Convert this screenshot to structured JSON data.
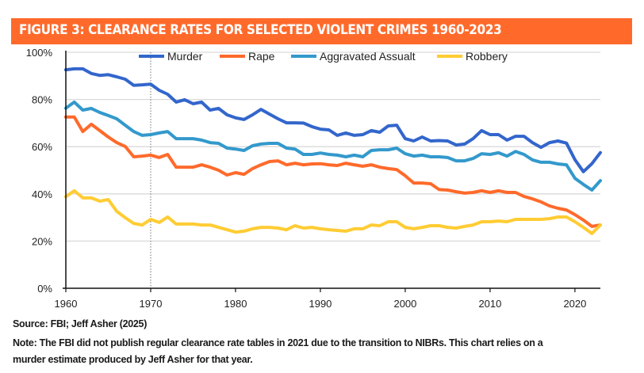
{
  "figure": {
    "title": "FIGURE 3: CLEARANCE RATES FOR SELECTED VIOLENT CRIMES 1960-2023",
    "banner_color": "#ff6a2b",
    "source": "Source: FBI; Jeff Asher (2025)",
    "note_line1": "Note: The FBI did not publish regular clearance rate tables in 2021 due to the transition to NIBRs. This chart relies on a",
    "note_line2": "murder estimate produced  by Jeff Asher for that year."
  },
  "chart_data": {
    "type": "line",
    "title": "FIGURE 3: CLEARANCE RATES FOR SELECTED VIOLENT CRIMES 1960-2023",
    "xlabel": "",
    "ylabel": "",
    "xlim": [
      1960,
      2023
    ],
    "ylim": [
      0,
      100
    ],
    "x_ticks": [
      1960,
      1970,
      1980,
      1990,
      2000,
      2010,
      2020
    ],
    "y_ticks": [
      0,
      20,
      40,
      60,
      80,
      100
    ],
    "y_tick_labels": [
      "0%",
      "20%",
      "40%",
      "60%",
      "80%",
      "100%"
    ],
    "grid": "horizontal",
    "legend_position": "top",
    "reference_line": {
      "x": 1970,
      "style": "dotted"
    },
    "x": [
      1960,
      1961,
      1962,
      1963,
      1964,
      1965,
      1966,
      1967,
      1968,
      1969,
      1970,
      1971,
      1972,
      1973,
      1974,
      1975,
      1976,
      1977,
      1978,
      1979,
      1980,
      1981,
      1982,
      1983,
      1984,
      1985,
      1986,
      1987,
      1988,
      1989,
      1990,
      1991,
      1992,
      1993,
      1994,
      1995,
      1996,
      1997,
      1998,
      1999,
      2000,
      2001,
      2002,
      2003,
      2004,
      2005,
      2006,
      2007,
      2008,
      2009,
      2010,
      2011,
      2012,
      2013,
      2014,
      2015,
      2016,
      2017,
      2018,
      2019,
      2020,
      2021,
      2022,
      2023
    ],
    "series": [
      {
        "name": "Murder",
        "color": "#3366cc",
        "values": [
          92.6,
          93.0,
          93.0,
          91.0,
          90.2,
          90.5,
          89.6,
          88.6,
          86.0,
          86.2,
          86.5,
          83.9,
          82.2,
          78.9,
          79.9,
          78.2,
          78.9,
          75.5,
          76.2,
          73.5,
          72.2,
          71.5,
          73.5,
          75.8,
          73.8,
          71.8,
          70.1,
          70.1,
          70.0,
          68.5,
          67.4,
          67.1,
          64.8,
          65.8,
          64.8,
          65.1,
          66.8,
          66.1,
          68.8,
          69.1,
          63.4,
          62.4,
          64.1,
          62.4,
          62.6,
          62.4,
          60.7,
          61.1,
          63.4,
          66.8,
          65.1,
          65.1,
          62.8,
          64.4,
          64.4,
          61.7,
          59.7,
          61.7,
          62.4,
          61.5,
          54.5,
          49.4,
          52.8,
          57.5
        ]
      },
      {
        "name": "Rape",
        "color": "#ff6a2b",
        "values": [
          72.6,
          72.6,
          66.4,
          69.5,
          66.8,
          64.1,
          61.7,
          60.1,
          55.7,
          56.0,
          56.4,
          55.4,
          56.7,
          51.3,
          51.3,
          51.3,
          52.3,
          51.3,
          50.0,
          48.0,
          49.0,
          48.3,
          50.7,
          52.3,
          53.7,
          54.0,
          52.3,
          53.0,
          52.3,
          52.7,
          52.8,
          52.3,
          52.0,
          53.0,
          52.3,
          51.7,
          52.3,
          51.3,
          50.7,
          50.3,
          47.7,
          44.6,
          44.6,
          44.3,
          41.8,
          41.6,
          40.9,
          40.3,
          40.6,
          41.3,
          40.6,
          41.3,
          40.6,
          40.6,
          38.9,
          37.9,
          36.6,
          34.9,
          33.9,
          33.2,
          31.2,
          28.9,
          26.2,
          26.8
        ]
      },
      {
        "name": "Aggravated Assualt",
        "color": "#3399cc",
        "values": [
          76.3,
          78.9,
          75.5,
          76.2,
          74.5,
          73.2,
          71.8,
          69.1,
          66.4,
          64.8,
          65.1,
          65.8,
          66.4,
          63.4,
          63.4,
          63.4,
          62.8,
          61.7,
          61.4,
          59.4,
          59.0,
          58.4,
          60.4,
          61.1,
          61.4,
          61.4,
          59.4,
          59.0,
          56.7,
          56.7,
          57.3,
          56.7,
          56.4,
          55.7,
          56.4,
          55.7,
          58.4,
          58.7,
          58.7,
          59.4,
          57.0,
          56.0,
          56.4,
          55.7,
          55.7,
          55.4,
          54.0,
          54.0,
          55.0,
          57.0,
          56.7,
          57.4,
          56.0,
          58.0,
          56.7,
          54.4,
          53.4,
          53.4,
          52.7,
          52.3,
          46.6,
          44.0,
          41.6,
          45.6
        ]
      },
      {
        "name": "Robbery",
        "color": "#ffcc33",
        "values": [
          38.8,
          41.3,
          38.3,
          38.3,
          36.9,
          37.6,
          32.6,
          29.9,
          27.5,
          26.8,
          29.2,
          27.9,
          30.2,
          27.2,
          27.2,
          27.2,
          26.8,
          26.8,
          25.8,
          24.8,
          23.8,
          24.2,
          25.2,
          25.8,
          25.8,
          25.5,
          24.8,
          26.5,
          25.5,
          25.8,
          25.2,
          24.8,
          24.5,
          24.2,
          25.2,
          25.2,
          26.8,
          26.5,
          28.2,
          28.2,
          25.8,
          25.2,
          25.8,
          26.5,
          26.5,
          25.8,
          25.5,
          26.2,
          26.8,
          28.2,
          28.2,
          28.5,
          28.2,
          29.2,
          29.2,
          29.2,
          29.2,
          29.5,
          30.2,
          30.2,
          28.2,
          25.8,
          23.2,
          26.8
        ]
      }
    ]
  }
}
